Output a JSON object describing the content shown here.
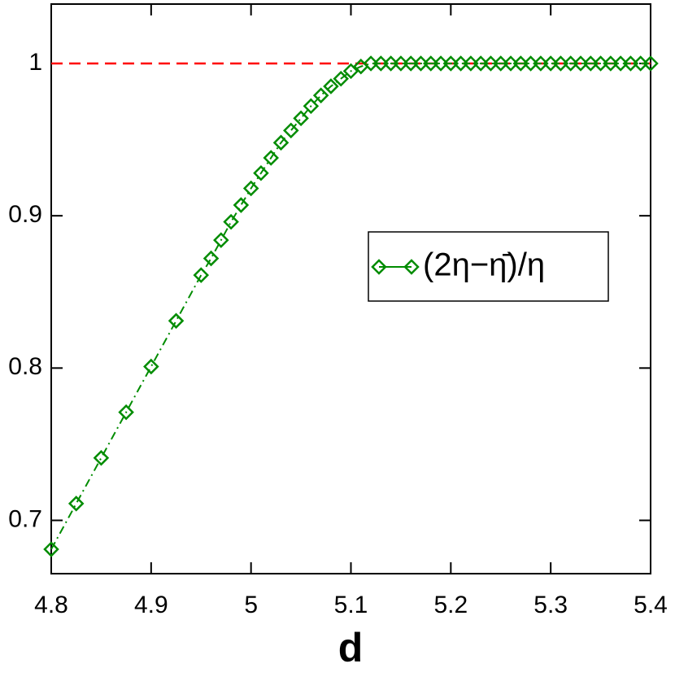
{
  "chart_data": {
    "type": "line",
    "x_label": "d",
    "x": [
      4.8,
      4.825,
      4.85,
      4.875,
      4.9,
      4.925,
      4.95,
      4.96,
      4.97,
      4.98,
      4.99,
      5.0,
      5.01,
      5.02,
      5.03,
      5.04,
      5.05,
      5.06,
      5.07,
      5.08,
      5.09,
      5.1,
      5.11,
      5.12,
      5.13,
      5.14,
      5.15,
      5.16,
      5.17,
      5.18,
      5.19,
      5.2,
      5.21,
      5.22,
      5.23,
      5.24,
      5.25,
      5.26,
      5.27,
      5.28,
      5.29,
      5.3,
      5.31,
      5.32,
      5.33,
      5.34,
      5.35,
      5.36,
      5.37,
      5.38,
      5.39,
      5.4
    ],
    "series": [
      {
        "name": "(2η−η̄)/η",
        "color": "#008c00",
        "values": [
          0.681,
          0.711,
          0.741,
          0.771,
          0.801,
          0.831,
          0.861,
          0.872,
          0.884,
          0.896,
          0.907,
          0.918,
          0.928,
          0.938,
          0.948,
          0.956,
          0.964,
          0.972,
          0.979,
          0.985,
          0.99,
          0.995,
          0.998,
          1,
          1,
          1,
          1,
          1,
          1,
          1,
          1,
          1,
          1,
          1,
          1,
          1,
          1,
          1,
          1,
          1,
          1,
          1,
          1,
          1,
          1,
          1,
          1,
          1,
          1,
          1,
          1,
          1
        ]
      }
    ],
    "hline": {
      "value": 1,
      "color": "#ff0000"
    },
    "xlim": [
      4.8,
      5.4
    ],
    "xticks": [
      4.8,
      4.9,
      5,
      5.1,
      5.2,
      5.3,
      5.4
    ],
    "ylim": [
      0.665,
      1.039
    ],
    "yticks": [
      0.7,
      0.8,
      0.9,
      1
    ],
    "legend": "right"
  }
}
